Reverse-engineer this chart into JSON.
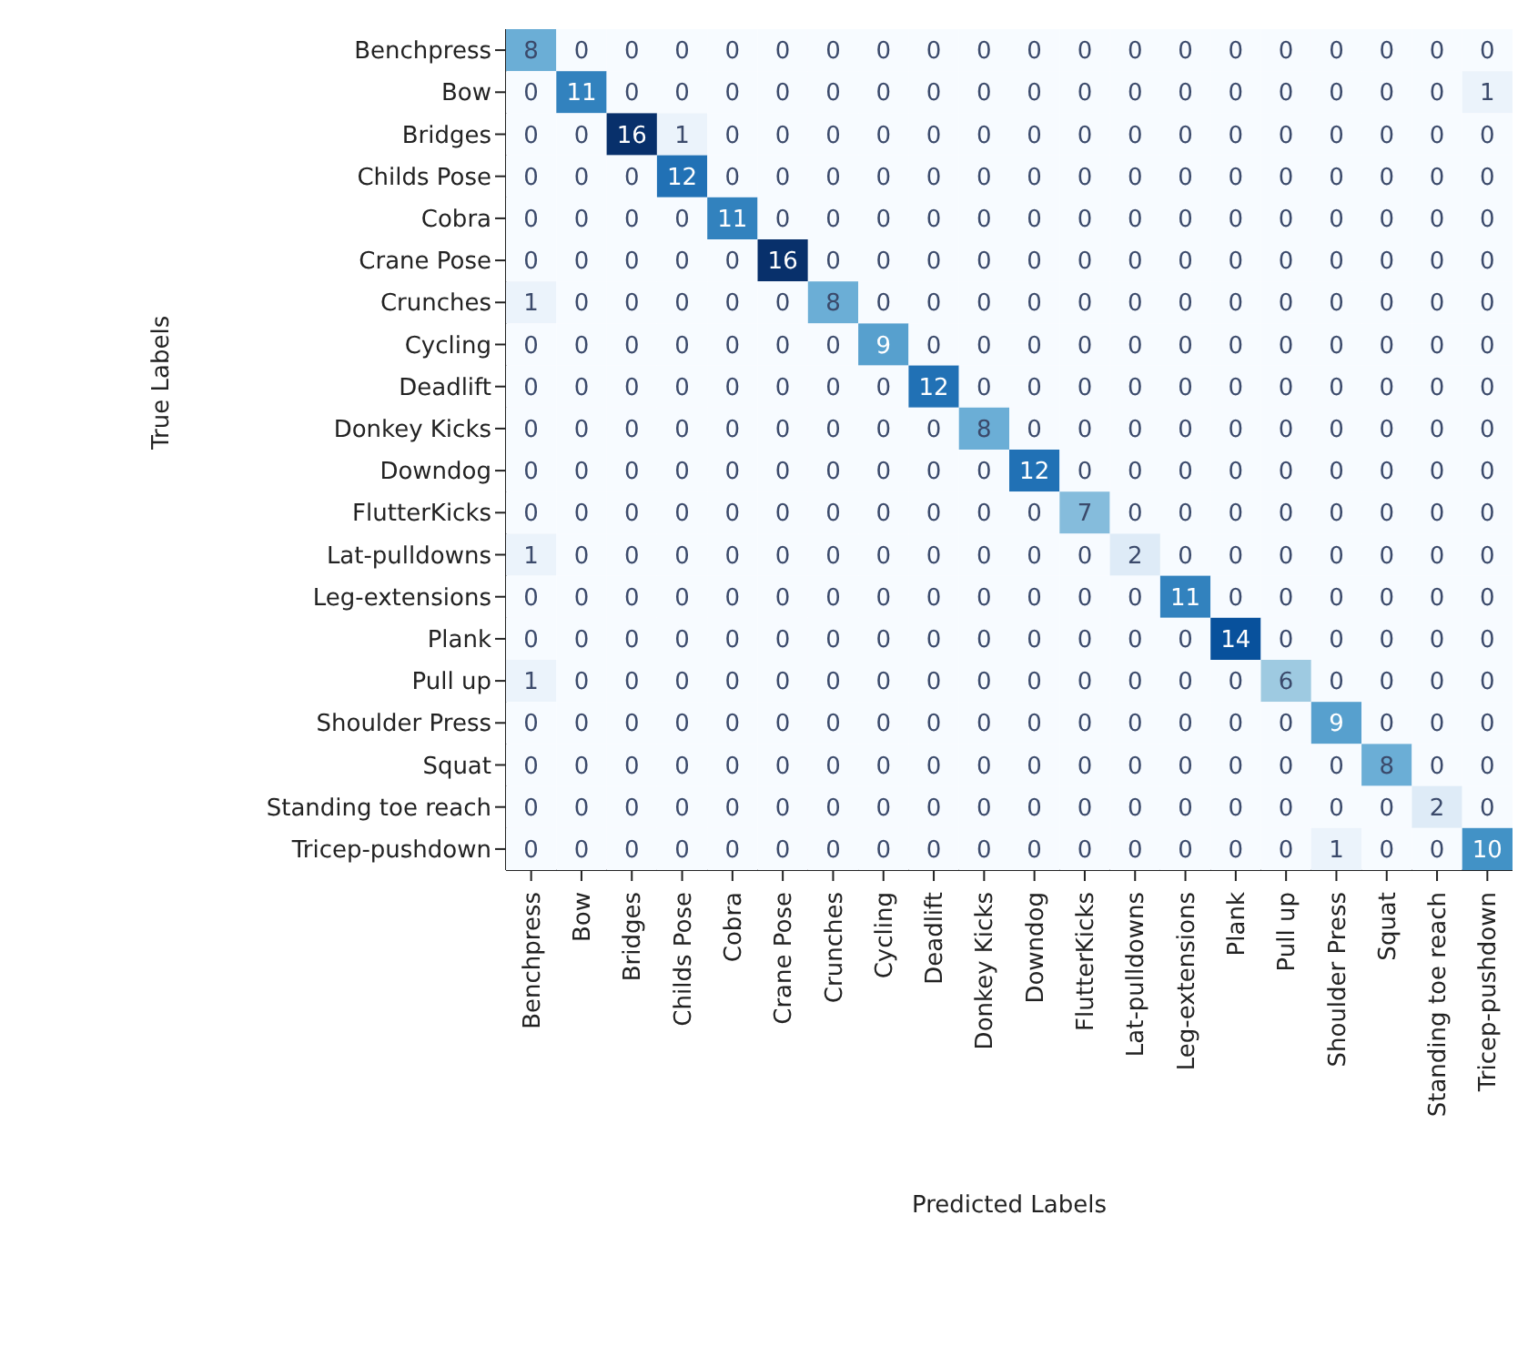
{
  "chart_data": {
    "type": "heatmap",
    "xlabel": "Predicted Labels",
    "ylabel": "True Labels",
    "categories": [
      "Benchpress",
      "Bow",
      "Bridges",
      "Childs Pose",
      "Cobra",
      "Crane Pose",
      "Crunches",
      "Cycling",
      "Deadlift",
      "Donkey Kicks",
      "Downdog",
      "FlutterKicks",
      "Lat-pulldowns",
      "Leg-extensions",
      "Plank",
      "Pull up",
      "Shoulder Press",
      "Squat",
      "Standing toe reach",
      "Tricep-pushdown"
    ],
    "y_categories": [
      "Benchpress",
      "Bow",
      "Bridges",
      "Childs Pose",
      "Cobra",
      "Crane Pose",
      "Crunches",
      "Cycling",
      "Deadlift",
      "Donkey Kicks",
      "Downdog",
      "FlutterKicks",
      "Lat-pulldowns",
      "Leg-extensions",
      "Plank",
      "Pull up",
      "Shoulder Press",
      "Squat",
      "Standing toe reach",
      "Tricep-pushdown"
    ],
    "cells": [
      [
        8,
        0,
        0,
        0,
        0,
        0,
        0,
        0,
        0,
        0,
        0,
        0,
        0,
        0,
        0,
        0,
        0,
        0,
        0,
        0
      ],
      [
        0,
        11,
        0,
        0,
        0,
        0,
        0,
        0,
        0,
        0,
        0,
        0,
        0,
        0,
        0,
        0,
        0,
        0,
        0,
        1
      ],
      [
        0,
        0,
        16,
        1,
        0,
        0,
        0,
        0,
        0,
        0,
        0,
        0,
        0,
        0,
        0,
        0,
        0,
        0,
        0,
        0
      ],
      [
        0,
        0,
        0,
        12,
        0,
        0,
        0,
        0,
        0,
        0,
        0,
        0,
        0,
        0,
        0,
        0,
        0,
        0,
        0,
        0
      ],
      [
        0,
        0,
        0,
        0,
        11,
        0,
        0,
        0,
        0,
        0,
        0,
        0,
        0,
        0,
        0,
        0,
        0,
        0,
        0,
        0
      ],
      [
        0,
        0,
        0,
        0,
        0,
        16,
        0,
        0,
        0,
        0,
        0,
        0,
        0,
        0,
        0,
        0,
        0,
        0,
        0,
        0
      ],
      [
        1,
        0,
        0,
        0,
        0,
        0,
        8,
        0,
        0,
        0,
        0,
        0,
        0,
        0,
        0,
        0,
        0,
        0,
        0,
        0
      ],
      [
        0,
        0,
        0,
        0,
        0,
        0,
        0,
        9,
        0,
        0,
        0,
        0,
        0,
        0,
        0,
        0,
        0,
        0,
        0,
        0
      ],
      [
        0,
        0,
        0,
        0,
        0,
        0,
        0,
        0,
        12,
        0,
        0,
        0,
        0,
        0,
        0,
        0,
        0,
        0,
        0,
        0
      ],
      [
        0,
        0,
        0,
        0,
        0,
        0,
        0,
        0,
        0,
        8,
        0,
        0,
        0,
        0,
        0,
        0,
        0,
        0,
        0,
        0
      ],
      [
        0,
        0,
        0,
        0,
        0,
        0,
        0,
        0,
        0,
        0,
        12,
        0,
        0,
        0,
        0,
        0,
        0,
        0,
        0,
        0
      ],
      [
        0,
        0,
        0,
        0,
        0,
        0,
        0,
        0,
        0,
        0,
        0,
        7,
        0,
        0,
        0,
        0,
        0,
        0,
        0,
        0
      ],
      [
        1,
        0,
        0,
        0,
        0,
        0,
        0,
        0,
        0,
        0,
        0,
        0,
        2,
        0,
        0,
        0,
        0,
        0,
        0,
        0
      ],
      [
        0,
        0,
        0,
        0,
        0,
        0,
        0,
        0,
        0,
        0,
        0,
        0,
        0,
        11,
        0,
        0,
        0,
        0,
        0,
        0
      ],
      [
        0,
        0,
        0,
        0,
        0,
        0,
        0,
        0,
        0,
        0,
        0,
        0,
        0,
        0,
        14,
        0,
        0,
        0,
        0,
        0
      ],
      [
        1,
        0,
        0,
        0,
        0,
        0,
        0,
        0,
        0,
        0,
        0,
        0,
        0,
        0,
        0,
        6,
        0,
        0,
        0,
        0
      ],
      [
        0,
        0,
        0,
        0,
        0,
        0,
        0,
        0,
        0,
        0,
        0,
        0,
        0,
        0,
        0,
        0,
        9,
        0,
        0,
        0
      ],
      [
        0,
        0,
        0,
        0,
        0,
        0,
        0,
        0,
        0,
        0,
        0,
        0,
        0,
        0,
        0,
        0,
        0,
        8,
        0,
        0
      ],
      [
        0,
        0,
        0,
        0,
        0,
        0,
        0,
        0,
        0,
        0,
        0,
        0,
        0,
        0,
        0,
        0,
        0,
        0,
        2,
        0
      ],
      [
        0,
        0,
        0,
        0,
        0,
        0,
        0,
        0,
        0,
        0,
        0,
        0,
        0,
        0,
        0,
        0,
        1,
        0,
        0,
        10
      ]
    ],
    "data_labels": true
  }
}
